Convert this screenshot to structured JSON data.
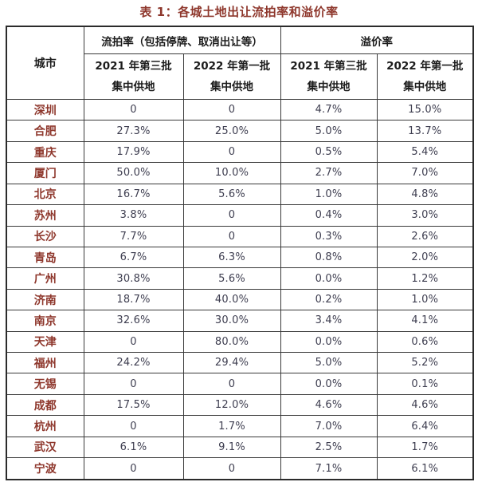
{
  "page": {
    "title": "表 1：各城土地出让流拍率和溢价率"
  },
  "colors": {
    "title_text": "#8e372c",
    "city_text": "#8e372c",
    "header_text": "#1c1c1c",
    "value_text": "#3e3e50",
    "border": "#3a3a3a",
    "outer_border": "#2b2b2b",
    "background": "#ffffff"
  },
  "table": {
    "corner_header": "城市",
    "group_headers": [
      {
        "label": "流拍率（包括停牌、取消出让等）"
      },
      {
        "label": "溢价率"
      }
    ],
    "sub_headers": [
      {
        "line1": "2021 年第三批",
        "line2": "集中供地"
      },
      {
        "line1": "2022 年第一批",
        "line2": "集中供地"
      },
      {
        "line1": "2021 年第三批",
        "line2": "集中供地"
      },
      {
        "line1": "2022 年第一批",
        "line2": "集中供地"
      }
    ],
    "rows": [
      {
        "city": "深圳",
        "values": [
          "0",
          "0",
          "4.7%",
          "15.0%"
        ]
      },
      {
        "city": "合肥",
        "values": [
          "27.3%",
          "25.0%",
          "5.0%",
          "13.7%"
        ]
      },
      {
        "city": "重庆",
        "values": [
          "17.9%",
          "0",
          "0.5%",
          "5.4%"
        ]
      },
      {
        "city": "厦门",
        "values": [
          "50.0%",
          "10.0%",
          "2.7%",
          "7.0%"
        ]
      },
      {
        "city": "北京",
        "values": [
          "16.7%",
          "5.6%",
          "1.0%",
          "4.8%"
        ]
      },
      {
        "city": "苏州",
        "values": [
          "3.8%",
          "0",
          "0.4%",
          "3.0%"
        ]
      },
      {
        "city": "长沙",
        "values": [
          "7.7%",
          "0",
          "0.3%",
          "2.6%"
        ]
      },
      {
        "city": "青岛",
        "values": [
          "6.7%",
          "6.3%",
          "0.8%",
          "2.0%"
        ]
      },
      {
        "city": "广州",
        "values": [
          "30.8%",
          "5.6%",
          "0.0%",
          "1.2%"
        ]
      },
      {
        "city": "济南",
        "values": [
          "18.7%",
          "40.0%",
          "0.2%",
          "1.0%"
        ]
      },
      {
        "city": "南京",
        "values": [
          "32.6%",
          "30.0%",
          "3.4%",
          "4.1%"
        ]
      },
      {
        "city": "天津",
        "values": [
          "0",
          "80.0%",
          "0.0%",
          "0.6%"
        ]
      },
      {
        "city": "福州",
        "values": [
          "24.2%",
          "29.4%",
          "5.0%",
          "5.2%"
        ]
      },
      {
        "city": "无锡",
        "values": [
          "0",
          "0",
          "0.0%",
          "0.1%"
        ]
      },
      {
        "city": "成都",
        "values": [
          "17.5%",
          "12.0%",
          "4.6%",
          "4.6%"
        ]
      },
      {
        "city": "杭州",
        "values": [
          "0",
          "1.7%",
          "7.0%",
          "6.4%"
        ]
      },
      {
        "city": "武汉",
        "values": [
          "6.1%",
          "9.1%",
          "2.5%",
          "1.7%"
        ]
      },
      {
        "city": "宁波",
        "values": [
          "0",
          "0",
          "7.1%",
          "6.1%"
        ]
      }
    ]
  }
}
